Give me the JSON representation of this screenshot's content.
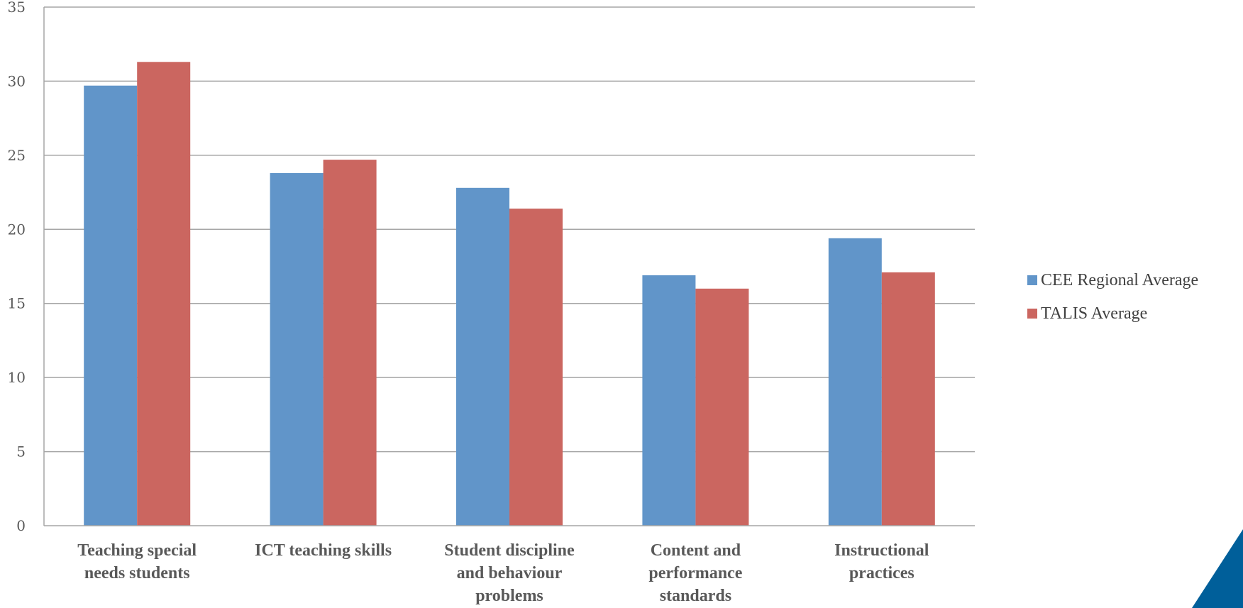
{
  "chart_data": {
    "type": "bar",
    "categories": [
      [
        "Teaching special",
        "needs students"
      ],
      [
        "ICT teaching skills"
      ],
      [
        "Student discipline",
        "and behaviour",
        "problems"
      ],
      [
        "Content and",
        "performance",
        "standards"
      ],
      [
        "Instructional",
        "practices"
      ]
    ],
    "series": [
      {
        "name": "CEE Regional Average",
        "color": "#6195c9",
        "values": [
          29.7,
          23.8,
          22.8,
          16.9,
          19.4
        ]
      },
      {
        "name": "TALIS Average",
        "color": "#cb6660",
        "values": [
          31.3,
          24.7,
          21.4,
          16.0,
          17.1
        ]
      }
    ],
    "ylim": [
      0,
      35
    ],
    "yticks": [
      "0",
      "5",
      "10",
      "15",
      "20",
      "25",
      "30",
      "35"
    ],
    "grid": true,
    "legend_position": "right",
    "corner_accent_color": "#005f9a"
  }
}
